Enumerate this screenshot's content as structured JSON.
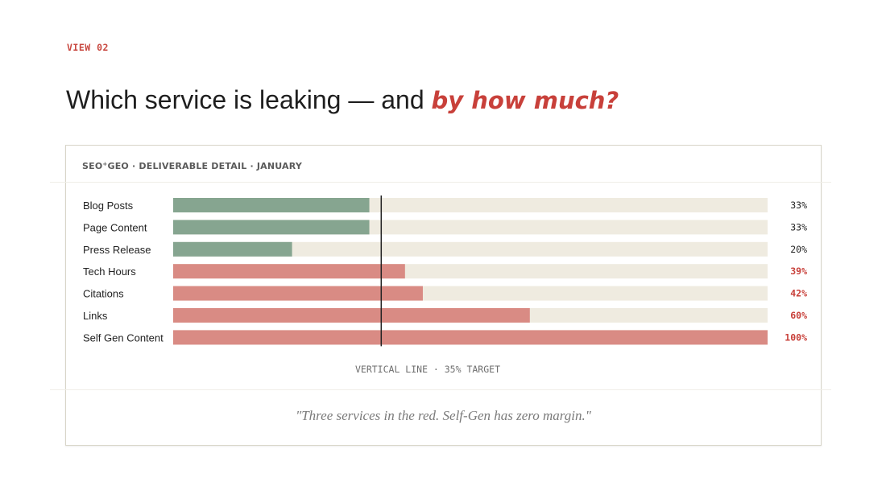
{
  "eyebrow": "VIEW 02",
  "headline": {
    "text": "Which service is leaking — and ",
    "accent": "by how much?"
  },
  "panel": {
    "header_brand": "SEO",
    "header_brand_mark": "+",
    "header_brand2": "GEO",
    "header_rest": " · DELIVERABLE DETAIL · JANUARY",
    "caption": "\"Three services in the red. Self-Gen has zero margin.\""
  },
  "colors": {
    "good": "#86a590",
    "bad": "#d98b84",
    "track": "#efebe0",
    "bad_text": "#c8403a",
    "text": "#222222",
    "target_line": "#222222"
  },
  "chart_data": {
    "type": "bar",
    "orientation": "horizontal",
    "categories": [
      "Blog Posts",
      "Page Content",
      "Press Release",
      "Tech Hours",
      "Citations",
      "Links",
      "Self Gen Content"
    ],
    "values": [
      33,
      33,
      20,
      39,
      42,
      60,
      100
    ],
    "value_labels": [
      "33%",
      "33%",
      "20%",
      "39%",
      "42%",
      "60%",
      "100%"
    ],
    "status": [
      "good",
      "good",
      "good",
      "bad",
      "bad",
      "bad",
      "bad"
    ],
    "xlim": [
      0,
      100
    ],
    "target": 35,
    "target_label": "VERTICAL LINE · 35% TARGET",
    "grid": false
  }
}
